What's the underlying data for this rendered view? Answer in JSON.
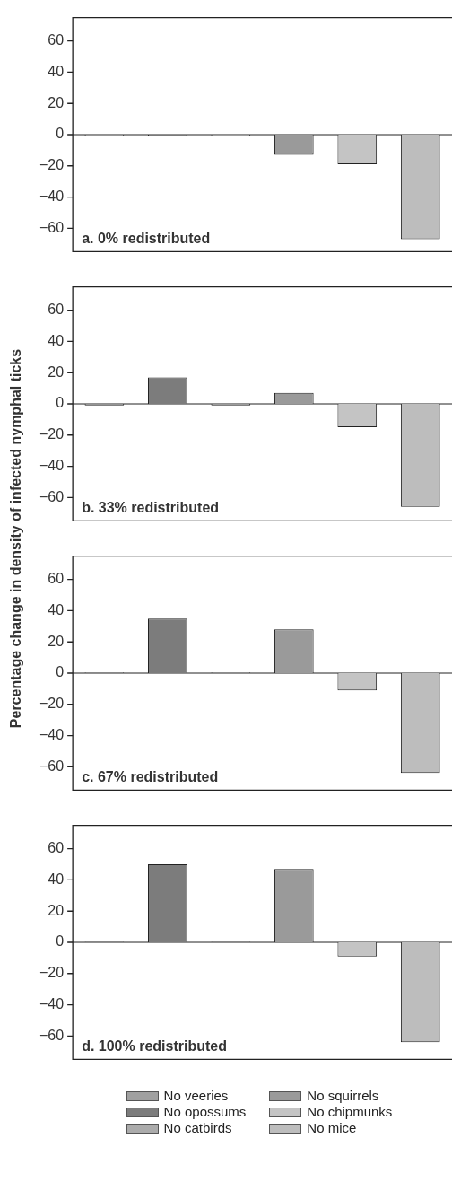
{
  "chart_data": [
    {
      "type": "bar",
      "title": "a. 0% redistributed",
      "categories": [
        null,
        null,
        null,
        null,
        null,
        null
      ],
      "ylim": [
        -75,
        75
      ],
      "yticks": [
        -60,
        -40,
        -20,
        0,
        20,
        40,
        60
      ],
      "tick_labels": "y",
      "series": [
        {
          "color": "#a0a0a0",
          "values": [
            -1,
            null,
            null,
            null,
            null,
            null
          ]
        },
        {
          "color": "#7c7c7c",
          "values": [
            null,
            -1,
            null,
            null,
            null,
            null
          ]
        },
        {
          "color": "#ababab",
          "values": [
            null,
            null,
            -1,
            null,
            null,
            null
          ]
        },
        {
          "color": "#9a9a9a",
          "values": [
            null,
            null,
            null,
            -13,
            null,
            null
          ]
        },
        {
          "color": "#c4c4c4",
          "values": [
            null,
            null,
            null,
            null,
            -19,
            null
          ]
        },
        {
          "color": "#bdbdbd",
          "values": [
            null,
            null,
            null,
            null,
            null,
            -67
          ]
        }
      ]
    },
    {
      "type": "bar",
      "title": "b. 33% redistributed",
      "ylabel": "Percentage change in density of infected nymphal ticks",
      "categories": [
        null,
        null,
        null,
        null,
        null,
        null
      ],
      "ylim": [
        -75,
        75
      ],
      "yticks": [
        -60,
        -40,
        -20,
        0,
        20,
        40,
        60
      ],
      "tick_labels": "y",
      "series": [
        {
          "color": "#a0a0a0",
          "values": [
            -1,
            null,
            null,
            null,
            null,
            null
          ]
        },
        {
          "color": "#7c7c7c",
          "values": [
            null,
            17,
            null,
            null,
            null,
            null
          ]
        },
        {
          "color": "#ababab",
          "values": [
            null,
            null,
            -1,
            null,
            null,
            null
          ]
        },
        {
          "color": "#9a9a9a",
          "values": [
            null,
            null,
            null,
            7,
            null,
            null
          ]
        },
        {
          "color": "#c4c4c4",
          "values": [
            null,
            null,
            null,
            null,
            -15,
            null
          ]
        },
        {
          "color": "#bdbdbd",
          "values": [
            null,
            null,
            null,
            null,
            null,
            -66
          ]
        }
      ]
    },
    {
      "type": "bar",
      "title": "c. 67% redistributed",
      "categories": [
        null,
        null,
        null,
        null,
        null,
        null
      ],
      "ylim": [
        -75,
        75
      ],
      "yticks": [
        -60,
        -40,
        -20,
        0,
        20,
        40,
        60
      ],
      "tick_labels": "y",
      "series": [
        {
          "color": "#a0a0a0",
          "values": [
            0.5,
            null,
            null,
            null,
            null,
            null
          ]
        },
        {
          "color": "#7c7c7c",
          "values": [
            null,
            35,
            null,
            null,
            null,
            null
          ]
        },
        {
          "color": "#ababab",
          "values": [
            null,
            null,
            0.5,
            null,
            null,
            null
          ]
        },
        {
          "color": "#9a9a9a",
          "values": [
            null,
            null,
            null,
            28,
            null,
            null
          ]
        },
        {
          "color": "#c4c4c4",
          "values": [
            null,
            null,
            null,
            null,
            -11,
            null
          ]
        },
        {
          "color": "#bdbdbd",
          "values": [
            null,
            null,
            null,
            null,
            null,
            -64
          ]
        }
      ]
    },
    {
      "type": "bar",
      "title": "d. 100% redistributed",
      "categories": [
        null,
        null,
        null,
        null,
        null,
        null
      ],
      "ylim": [
        -75,
        75
      ],
      "yticks": [
        -60,
        -40,
        -20,
        0,
        20,
        40,
        60
      ],
      "legend": "bottom",
      "tick_labels": "y",
      "series": [
        {
          "name": "No veeries",
          "color": "#a0a0a0",
          "values": [
            0.3,
            null,
            null,
            null,
            null,
            null
          ]
        },
        {
          "name": "No opossums",
          "color": "#7c7c7c",
          "values": [
            null,
            50,
            null,
            null,
            null,
            null
          ]
        },
        {
          "name": "No catbirds",
          "color": "#ababab",
          "values": [
            null,
            null,
            0.3,
            null,
            null,
            null
          ]
        },
        {
          "name": "No squirrels",
          "color": "#9a9a9a",
          "values": [
            null,
            null,
            null,
            47,
            null,
            null
          ]
        },
        {
          "name": "No chipmunks",
          "color": "#c4c4c4",
          "values": [
            null,
            null,
            null,
            null,
            -9,
            null
          ]
        },
        {
          "name": "No mice",
          "color": "#bdbdbd",
          "values": [
            null,
            null,
            null,
            null,
            null,
            -64
          ]
        }
      ]
    }
  ]
}
